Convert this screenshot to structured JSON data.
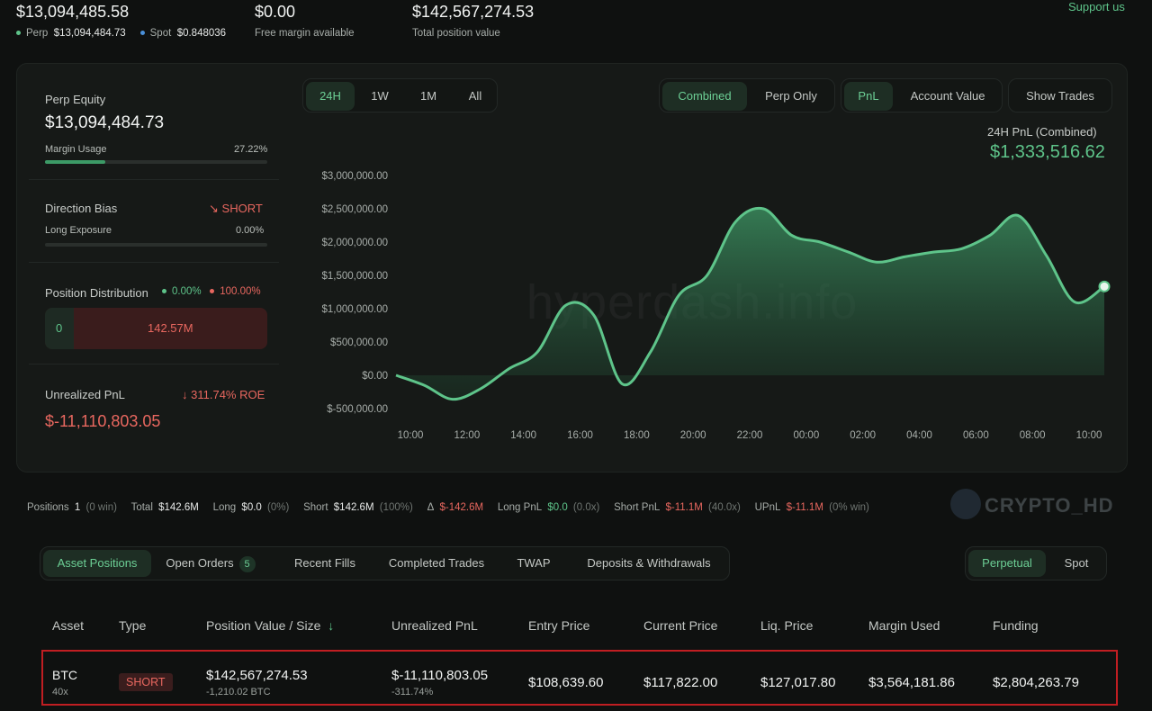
{
  "top": {
    "total_value": "$13,094,485.58",
    "perp_label": "Perp",
    "perp_value": "$13,094,484.73",
    "spot_label": "Spot",
    "spot_value": "$0.848036",
    "free_margin_value": "$0.00",
    "free_margin_label": "Free margin available",
    "position_value": "$142,567,274.53",
    "position_label": "Total position value",
    "support_link": "Support us",
    "colors": {
      "green": "#5ec48a",
      "blue": "#4a90d9"
    }
  },
  "left": {
    "perp_equity_label": "Perp Equity",
    "perp_equity_value": "$13,094,484.73",
    "margin_usage_label": "Margin Usage",
    "margin_usage_value": "27.22%",
    "margin_usage_fraction": 0.2722,
    "direction_bias_label": "Direction Bias",
    "direction_bias_value": "SHORT",
    "long_exposure_label": "Long Exposure",
    "long_exposure_value": "0.00%",
    "position_distribution_label": "Position Distribution",
    "dist_long_pct": "0.00%",
    "dist_short_pct": "100.00%",
    "dist_long_value": "0",
    "dist_short_value": "142.57M",
    "unrealized_label": "Unrealized PnL",
    "roe_value": "311.74% ROE",
    "unrealized_value": "$-11,110,803.05"
  },
  "range_tabs": [
    "24H",
    "1W",
    "1M",
    "All"
  ],
  "mode_tabs": [
    "Combined",
    "Perp Only"
  ],
  "metric_tabs": [
    "PnL",
    "Account Value"
  ],
  "show_trades": "Show Trades",
  "chart_header": {
    "label": "24H PnL (Combined)",
    "value": "$1,333,516.62"
  },
  "watermark": "hyperdash.info",
  "chart_data": {
    "type": "area",
    "title": "24H PnL (Combined)",
    "x": [
      "10:00",
      "11:00",
      "12:00",
      "13:00",
      "14:00",
      "15:00",
      "16:00",
      "17:00",
      "18:00",
      "19:00",
      "20:00",
      "21:00",
      "22:00",
      "23:00",
      "00:00",
      "01:00",
      "02:00",
      "03:00",
      "04:00",
      "05:00",
      "06:00",
      "07:00",
      "08:00",
      "09:00",
      "10:00",
      "10:30"
    ],
    "values": [
      0,
      -150000,
      -360000,
      -200000,
      100000,
      350000,
      1050000,
      900000,
      -130000,
      350000,
      1200000,
      1500000,
      2300000,
      2500000,
      2100000,
      2000000,
      1850000,
      1700000,
      1780000,
      1850000,
      1900000,
      2100000,
      2400000,
      1800000,
      1100000,
      1333516.62
    ],
    "x_tick_labels": [
      "10:00",
      "12:00",
      "14:00",
      "16:00",
      "18:00",
      "20:00",
      "22:00",
      "00:00",
      "02:00",
      "04:00",
      "06:00",
      "08:00",
      "10:00"
    ],
    "y_tick_labels": [
      "$3,000,000.00",
      "$2,500,000.00",
      "$2,000,000.00",
      "$1,500,000.00",
      "$1,000,000.00",
      "$500,000.00",
      "$0.00",
      "$-500,000.00"
    ],
    "y_ticks": [
      3000000,
      2500000,
      2000000,
      1500000,
      1000000,
      500000,
      0,
      -500000
    ],
    "ylim": [
      -500000,
      3000000
    ],
    "color": "#5ec48a"
  },
  "strip": {
    "positions_label": "Positions",
    "positions_count": "1",
    "positions_win": "(0 win)",
    "total_label": "Total",
    "total_value": "$142.6M",
    "long_label": "Long",
    "long_value": "$0.0",
    "long_pct": "(0%)",
    "short_label": "Short",
    "short_value": "$142.6M",
    "short_pct": "(100%)",
    "delta_label": "Δ",
    "delta_value": "$-142.6M",
    "long_pnl_label": "Long PnL",
    "long_pnl_value": "$0.0",
    "long_pnl_x": "(0.0x)",
    "short_pnl_label": "Short PnL",
    "short_pnl_value": "$-11.1M",
    "short_pnl_x": "(40.0x)",
    "upnl_label": "UPnL",
    "upnl_value": "$-11.1M",
    "upnl_win": "(0% win)",
    "brand": "CRYPTO_HD"
  },
  "bottom_tabs": {
    "asset_positions": "Asset Positions",
    "open_orders": "Open Orders",
    "open_orders_count": "5",
    "recent_fills": "Recent Fills",
    "completed_trades": "Completed Trades",
    "twap": "TWAP",
    "deposits": "Deposits & Withdrawals",
    "perpetual": "Perpetual",
    "spot": "Spot"
  },
  "table": {
    "headers": [
      "Asset",
      "Type",
      "Position Value / Size",
      "Unrealized PnL",
      "Entry Price",
      "Current Price",
      "Liq. Price",
      "Margin Used",
      "Funding"
    ],
    "row": {
      "asset": "BTC",
      "leverage": "40x",
      "type": "SHORT",
      "position_value": "$142,567,274.53",
      "size": "-1,210.02 BTC",
      "unrealized_pnl": "$-11,110,803.05",
      "pnl_pct": "-311.74%",
      "entry_price": "$108,639.60",
      "current_price": "$117,822.00",
      "liq_price": "$127,017.80",
      "margin_used": "$3,564,181.86",
      "funding": "$2,804,263.79"
    }
  }
}
